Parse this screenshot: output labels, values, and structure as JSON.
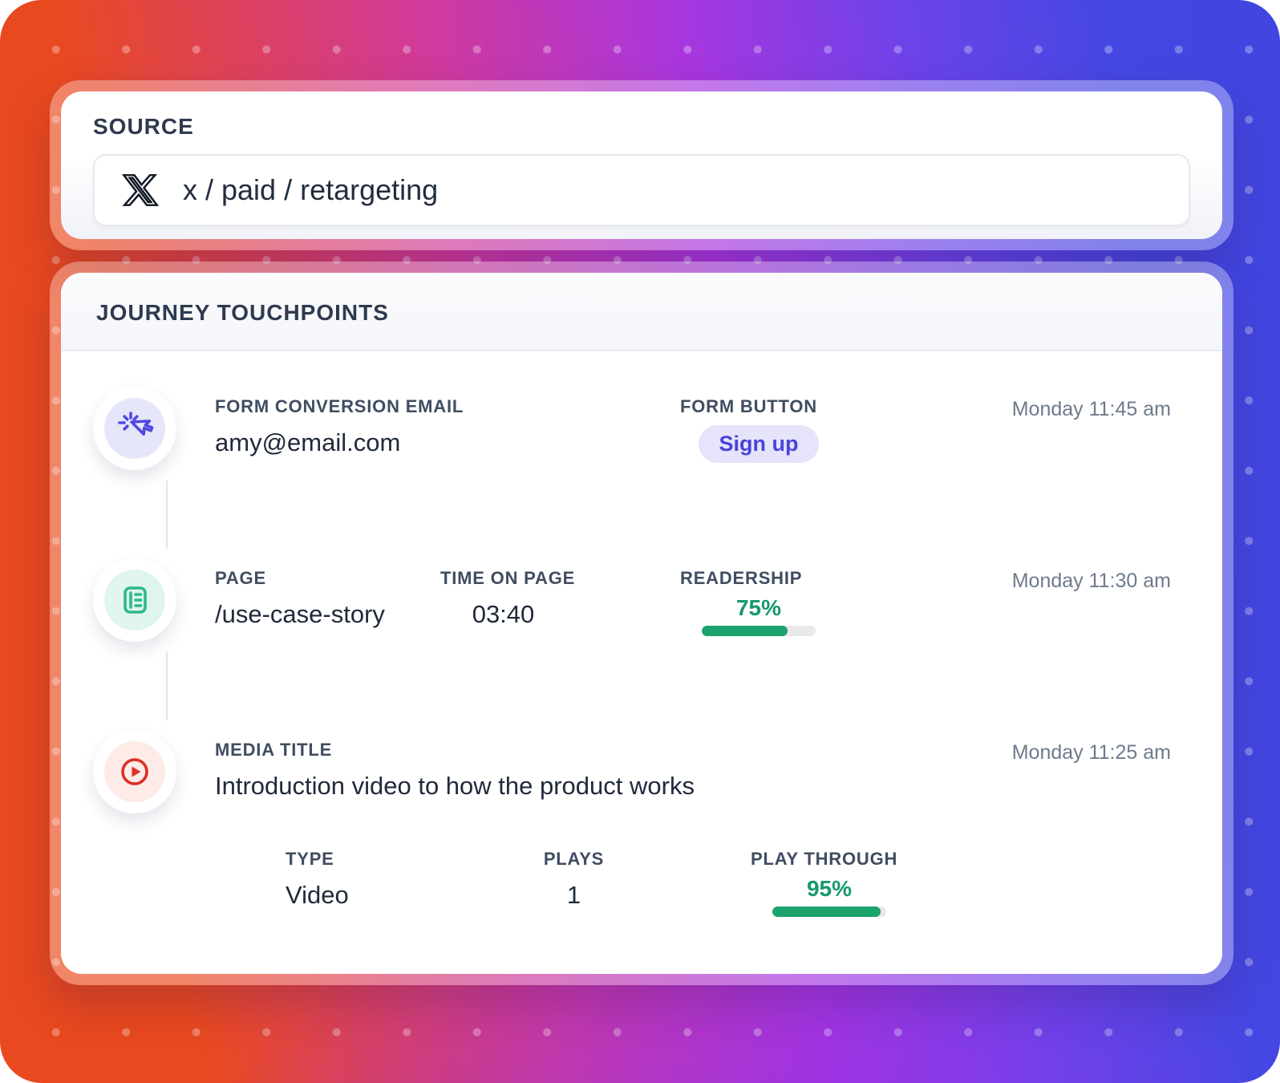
{
  "source": {
    "title": "SOURCE",
    "input": {
      "icon": "x-logo",
      "value": "x / paid / retargeting"
    }
  },
  "journey": {
    "title": "JOURNEY TOUCHPOINTS",
    "rows": [
      {
        "icon": "cursor-click",
        "time": "Monday 11:45 am",
        "email_label": "FORM CONVERSION EMAIL",
        "email_value": "amy@email.com",
        "button_label": "FORM BUTTON",
        "button_value": "Sign up"
      },
      {
        "icon": "article",
        "time": "Monday 11:30 am",
        "page_label": "PAGE",
        "page_value": "/use-case-story",
        "top_label": "TIME ON PAGE",
        "top_value": "03:40",
        "readership_label": "READERSHIP",
        "readership_pct": "75%",
        "readership_fill": 75
      },
      {
        "icon": "play",
        "time": "Monday 11:25 am",
        "media_label": "MEDIA TITLE",
        "media_value": "Introduction video to how the product works",
        "type_label": "TYPE",
        "type_value": "Video",
        "plays_label": "PLAYS",
        "plays_value": "1",
        "pt_label": "PLAY THROUGH",
        "pt_pct": "95%",
        "pt_fill": 95
      }
    ]
  },
  "colors": {
    "accent_indigo": "#4a44db",
    "accent_green": "#1ba26d",
    "accent_red": "#dc2f26",
    "gradient_orange": "#e9491e",
    "gradient_magenta": "#d03a9b",
    "gradient_purple": "#a836de",
    "gradient_blue": "#4146e0"
  }
}
